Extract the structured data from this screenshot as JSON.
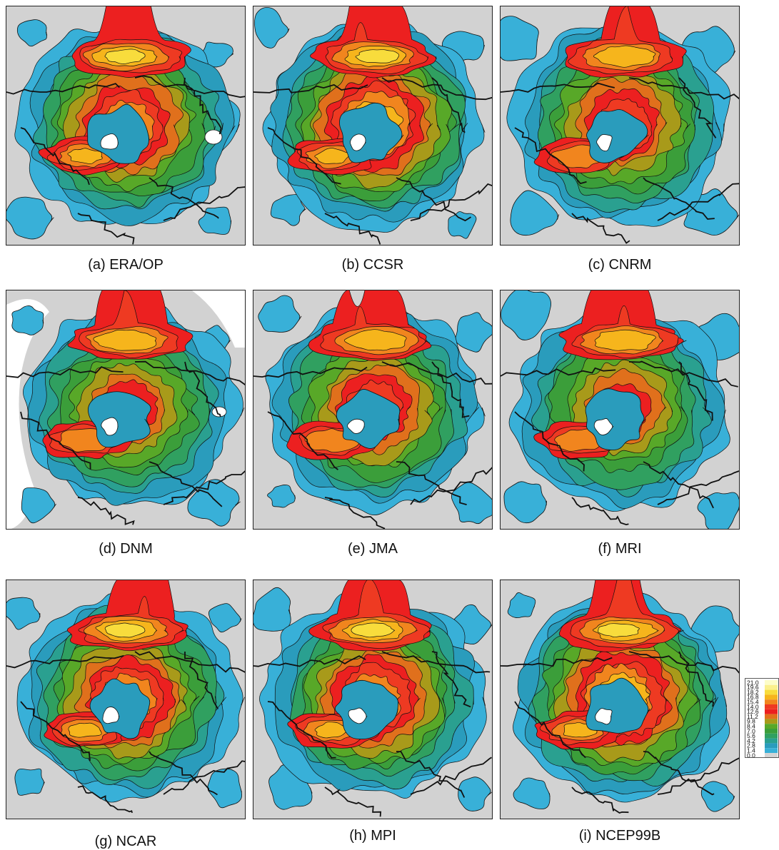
{
  "panels": [
    {
      "id": "a",
      "caption": "(a) ERA/OP",
      "white_holes": [
        [
          290,
          183,
          12,
          10
        ]
      ],
      "sea_white": false,
      "seed": 11,
      "intensity": 0.95
    },
    {
      "id": "b",
      "caption": "(b) CCSR",
      "white_holes": [],
      "sea_white": false,
      "seed": 22,
      "intensity": 1.0
    },
    {
      "id": "c",
      "caption": "(c) CNRM",
      "white_holes": [],
      "sea_white": false,
      "seed": 33,
      "intensity": 0.8
    },
    {
      "id": "d",
      "caption": "(d) DNM",
      "white_holes": [
        [
          298,
          170,
          10,
          7
        ]
      ],
      "sea_white": true,
      "seed": 44,
      "intensity": 0.75
    },
    {
      "id": "e",
      "caption": "(e) JMA",
      "white_holes": [],
      "sea_white": false,
      "seed": 55,
      "intensity": 0.85
    },
    {
      "id": "f",
      "caption": "(f) MRI",
      "white_holes": [],
      "sea_white": false,
      "seed": 66,
      "intensity": 0.75
    },
    {
      "id": "g",
      "caption": "(g) NCAR",
      "white_holes": [],
      "sea_white": false,
      "seed": 77,
      "intensity": 0.95
    },
    {
      "id": "h",
      "caption": "(h) MPI",
      "white_holes": [],
      "sea_white": false,
      "seed": 88,
      "intensity": 0.9
    },
    {
      "id": "i",
      "caption": "(i) NCEP99B",
      "white_holes": [],
      "sea_white": false,
      "seed": 99,
      "intensity": 1.0
    }
  ],
  "legend": {
    "levels": [
      "21.0",
      "19.6",
      "18.2",
      "16.8",
      "15.4",
      "14.0",
      "12.6",
      "11.2",
      "9.8",
      "8.4",
      "7.0",
      "5.6",
      "4.2",
      "2.8",
      "1.4",
      "0.0"
    ],
    "colors": [
      "#fdfdc8",
      "#fbf08c",
      "#f8dc3c",
      "#f6b51c",
      "#f1851e",
      "#ee3a22",
      "#ec2020",
      "#e0701c",
      "#a89a1a",
      "#58a828",
      "#3b9e3a",
      "#30a060",
      "#2aa090",
      "#2a9cbc",
      "#38b0d8",
      "#d4d4d4"
    ]
  }
}
